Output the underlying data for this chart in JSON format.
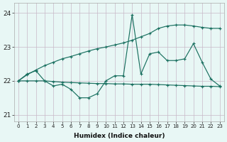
{
  "xlabel": "Humidex (Indice chaleur)",
  "bg_color": "#e8f7f5",
  "grid_color": "#c8b8c8",
  "line_color": "#1a7060",
  "x_values": [
    0,
    1,
    2,
    3,
    4,
    5,
    6,
    7,
    8,
    9,
    10,
    11,
    12,
    13,
    14,
    15,
    16,
    17,
    18,
    19,
    20,
    21,
    22,
    23
  ],
  "series1": [
    22.0,
    22.2,
    22.3,
    22.0,
    21.85,
    21.9,
    21.75,
    21.5,
    21.5,
    21.62,
    22.0,
    22.15,
    22.15,
    23.95,
    22.2,
    22.8,
    22.85,
    22.6,
    22.6,
    22.65,
    23.1,
    22.55,
    22.05,
    21.85
  ],
  "series2": [
    22.0,
    22.18,
    22.32,
    22.45,
    22.55,
    22.65,
    22.72,
    22.8,
    22.88,
    22.95,
    23.0,
    23.06,
    23.12,
    23.2,
    23.3,
    23.4,
    23.55,
    23.62,
    23.65,
    23.65,
    23.62,
    23.58,
    23.55,
    23.55
  ],
  "series3": [
    22.0,
    22.0,
    22.0,
    22.0,
    21.98,
    21.96,
    21.95,
    21.94,
    21.93,
    21.92,
    21.92,
    21.91,
    21.91,
    21.9,
    21.9,
    21.9,
    21.89,
    21.88,
    21.87,
    21.86,
    21.85,
    21.84,
    21.84,
    21.83
  ],
  "ylim": [
    20.8,
    24.3
  ],
  "yticks": [
    21,
    22,
    23,
    24
  ],
  "xlim": [
    -0.5,
    23.5
  ]
}
